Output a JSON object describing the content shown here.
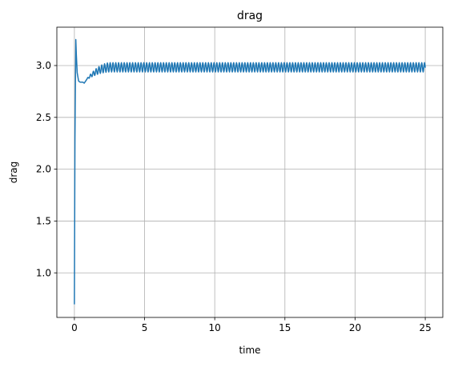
{
  "chart_data": {
    "type": "line",
    "title": "drag",
    "xlabel": "time",
    "ylabel": "drag",
    "xlim": [
      -1.25,
      26.25
    ],
    "ylim": [
      0.57,
      3.37
    ],
    "grid": true,
    "legend": "none",
    "x_ticks": [
      {
        "value": 0,
        "label": "0"
      },
      {
        "value": 5,
        "label": "5"
      },
      {
        "value": 10,
        "label": "10"
      },
      {
        "value": 15,
        "label": "15"
      },
      {
        "value": 20,
        "label": "20"
      },
      {
        "value": 25,
        "label": "25"
      }
    ],
    "y_ticks": [
      {
        "value": 1.0,
        "label": "1.0"
      },
      {
        "value": 1.5,
        "label": "1.5"
      },
      {
        "value": 2.0,
        "label": "2.0"
      },
      {
        "value": 2.5,
        "label": "2.5"
      },
      {
        "value": 3.0,
        "label": "3.0"
      }
    ],
    "series": [
      {
        "color": "#1f77b4",
        "transient": {
          "x": [
            0.0,
            0.04,
            0.1,
            0.14,
            0.2,
            0.3,
            0.4,
            0.5,
            0.6,
            0.7,
            0.8,
            0.9
          ],
          "y": [
            0.7,
            2.3,
            3.25,
            3.1,
            2.93,
            2.85,
            2.84,
            2.84,
            2.84,
            2.83,
            2.85,
            2.87
          ]
        },
        "oscillation": {
          "start_time": 0.9,
          "end_time": 25.0,
          "period": 0.2,
          "mean_start": 2.87,
          "mean_end": 2.983,
          "settle_time": 2.6,
          "amplitude_start": 0.005,
          "amplitude_end": 0.045
        }
      }
    ]
  }
}
